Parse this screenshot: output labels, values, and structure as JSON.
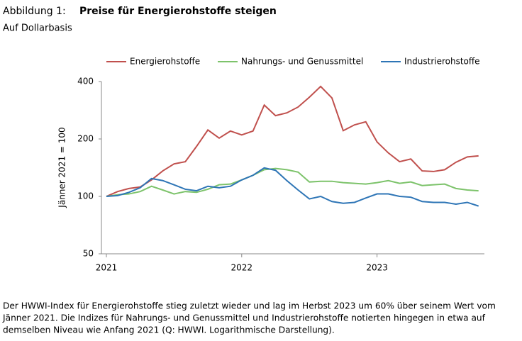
{
  "chart_data": {
    "type": "line",
    "title_prefix": "Abbildung 1:",
    "title": "Preise für Energierohstoffe steigen",
    "subtitle": "Auf Dollarbasis",
    "y_label": "Jänner 2021 = 100",
    "categories": [
      "2021",
      null,
      null,
      null,
      null,
      null,
      null,
      null,
      null,
      null,
      null,
      null,
      "2022",
      null,
      null,
      null,
      null,
      null,
      null,
      null,
      null,
      null,
      null,
      null,
      "2023",
      null,
      null,
      null,
      null,
      null,
      null,
      null,
      null,
      null
    ],
    "series": [
      {
        "name": "Energierohstoffe",
        "color": "#c0504d",
        "values": [
          100,
          106,
          110,
          112,
          122,
          136,
          148,
          152,
          183,
          223,
          202,
          220,
          210,
          220,
          301,
          265,
          274,
          294,
          331,
          377,
          328,
          221,
          237,
          246,
          193,
          169,
          152,
          157,
          136,
          135,
          138,
          151,
          161,
          163
        ]
      },
      {
        "name": "Nahrungs- und Genussmittel",
        "color": "#7dc36b",
        "values": [
          100,
          102,
          103,
          106,
          113,
          108,
          103,
          106,
          105,
          109,
          115,
          116,
          122,
          129,
          138,
          140,
          138,
          134,
          119,
          120,
          120,
          118,
          117,
          116,
          118,
          121,
          117,
          119,
          114,
          115,
          116,
          110,
          108,
          107
        ]
      },
      {
        "name": "Industrierohstoffe",
        "color": "#2e75b6",
        "values": [
          100,
          101,
          105,
          111,
          124,
          121,
          115,
          109,
          107,
          113,
          111,
          113,
          122,
          129,
          141,
          137,
          121,
          108,
          97,
          100,
          94,
          92,
          93,
          98,
          103,
          103,
          100,
          99,
          94,
          93,
          93,
          91,
          93,
          89
        ]
      }
    ],
    "ylim": [
      50,
      400
    ],
    "yticks": [
      50,
      100,
      200,
      400
    ],
    "log_scale": true,
    "note": [
      "Der HWWI-Index für Energierohstoffe stieg zuletzt wieder und lag im Herbst 2023 um 60% über seinem Wert vom",
      "Jänner 2021. Die Indizes für Nahrungs- und Genussmittel und Industrierohstoffe notierten hingegen in etwa auf",
      "demselben Niveau wie Anfang 2021 (Q: HWWI. Logarithmische Darstellung)."
    ]
  }
}
